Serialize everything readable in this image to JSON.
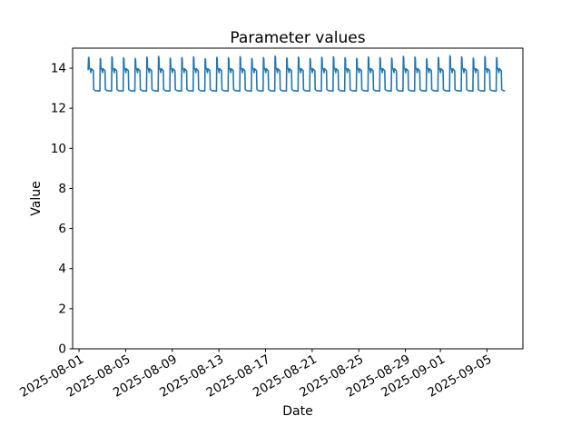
{
  "chart_data": {
    "type": "line",
    "title": "Parameter values",
    "xlabel": "Date",
    "ylabel": "Value",
    "grid": false,
    "legend": null,
    "line_color": "#1f77b4",
    "background_color": "#ffffff",
    "x_axis": {
      "kind": "date",
      "epoch": "2025-08-01",
      "tick_labels": [
        "2025-08-01",
        "2025-08-05",
        "2025-08-09",
        "2025-08-13",
        "2025-08-17",
        "2025-08-21",
        "2025-08-25",
        "2025-08-29",
        "2025-09-01",
        "2025-09-05"
      ],
      "tick_day_offsets": [
        0,
        4,
        8,
        12,
        16,
        20,
        24,
        28,
        31,
        35
      ],
      "xlim_day_offsets": [
        -0.55,
        38.08
      ],
      "tick_rotation_deg": 30
    },
    "y_axis": {
      "ticks": [
        0,
        2,
        4,
        6,
        8,
        10,
        12,
        14
      ],
      "ylim": [
        0,
        15.0
      ]
    },
    "series": [
      {
        "name": "parameter",
        "description": "Repeating daily square-wave cycle: vertical jump to a brief spike ~14.5, upper plateau ~13.9-14.0 with small notch, drop to lower plateau ~12.87 for the rest of the day",
        "start_day_offset": 0.78,
        "end_day_offset": 36.55,
        "num_days": 36,
        "cycle_start_offset": 0.82,
        "lead_in_point": [
          0.78,
          13.9
        ],
        "daily_pattern": [
          [
            0.0,
            14.52
          ],
          [
            0.035,
            14.45
          ],
          [
            0.055,
            14.02
          ],
          [
            0.13,
            13.96
          ],
          [
            0.2,
            13.78
          ],
          [
            0.24,
            13.97
          ],
          [
            0.33,
            13.92
          ],
          [
            0.41,
            13.87
          ],
          [
            0.44,
            12.94
          ],
          [
            0.58,
            12.88
          ],
          [
            0.97,
            12.86
          ]
        ],
        "peak_jitter": [
          0.02,
          -0.03,
          0.05,
          0,
          -0.04,
          0.03,
          0.07,
          -0.02,
          0.01,
          0.04,
          -0.05,
          0.02,
          0,
          0.06,
          -0.03,
          0.01,
          0.08,
          -0.01,
          0.03,
          -0.04,
          0.02,
          0.05,
          0,
          -0.03,
          0.04,
          0.01,
          -0.02,
          0.07,
          0.03,
          -0.05,
          0.02,
          0.1,
          0.04,
          -0.02,
          0.06,
          0.01
        ],
        "value_levels": {
          "peak": 14.52,
          "high_plateau": 13.9,
          "low_plateau": 12.87
        }
      }
    ]
  }
}
